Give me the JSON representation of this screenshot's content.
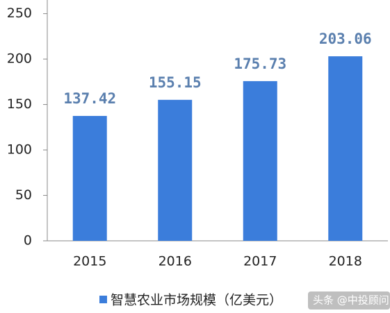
{
  "chart_data": {
    "type": "bar",
    "categories": [
      "2015",
      "2016",
      "2017",
      "2018"
    ],
    "series": [
      {
        "name": "智慧农业市场规模（亿美元）",
        "color": "#3b7ddb",
        "values": [
          137.42,
          155.15,
          175.73,
          203.06
        ]
      }
    ],
    "ylim": [
      0,
      265
    ],
    "yticks": [
      0,
      50,
      100,
      150,
      200,
      250
    ],
    "grid": false,
    "legend": "bottom",
    "watermark": "头条 @中投顾问"
  }
}
